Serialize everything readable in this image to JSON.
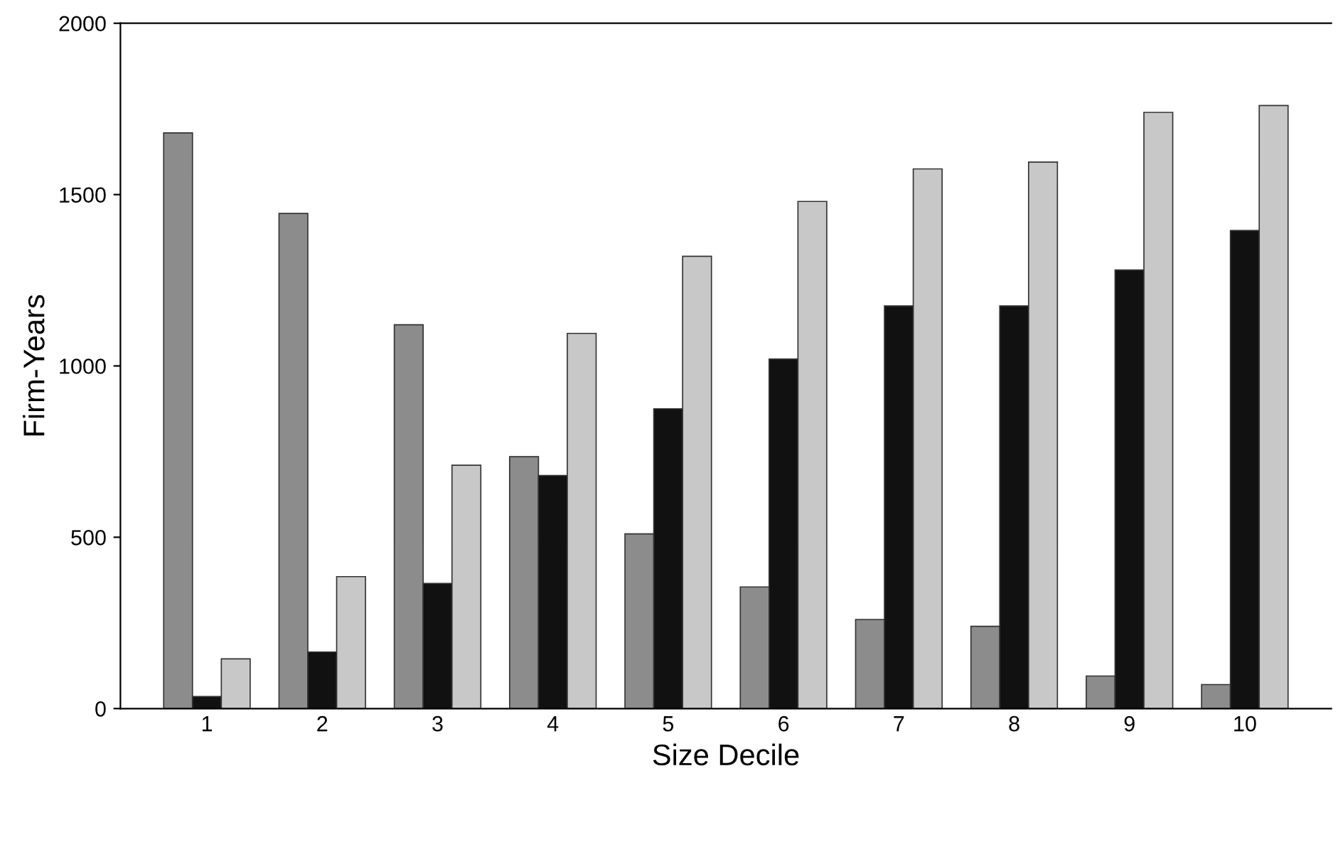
{
  "chart_data": {
    "type": "bar",
    "xlabel": "Size Decile",
    "ylabel": "Firm-Years",
    "categories": [
      "1",
      "2",
      "3",
      "4",
      "5",
      "6",
      "7",
      "8",
      "9",
      "10"
    ],
    "series": [
      {
        "color": "#8c8c8c",
        "values": [
          1680,
          1445,
          1120,
          735,
          510,
          355,
          260,
          240,
          95,
          70
        ]
      },
      {
        "color": "#111111",
        "values": [
          35,
          165,
          365,
          680,
          875,
          1020,
          1175,
          1175,
          1280,
          1395
        ]
      },
      {
        "color": "#c8c8c8",
        "values": [
          145,
          385,
          710,
          1095,
          1320,
          1480,
          1575,
          1595,
          1740,
          1760
        ]
      }
    ],
    "ylim": [
      0,
      2000
    ],
    "yticks": [
      0,
      500,
      1000,
      1500,
      2000
    ],
    "grid": false
  }
}
